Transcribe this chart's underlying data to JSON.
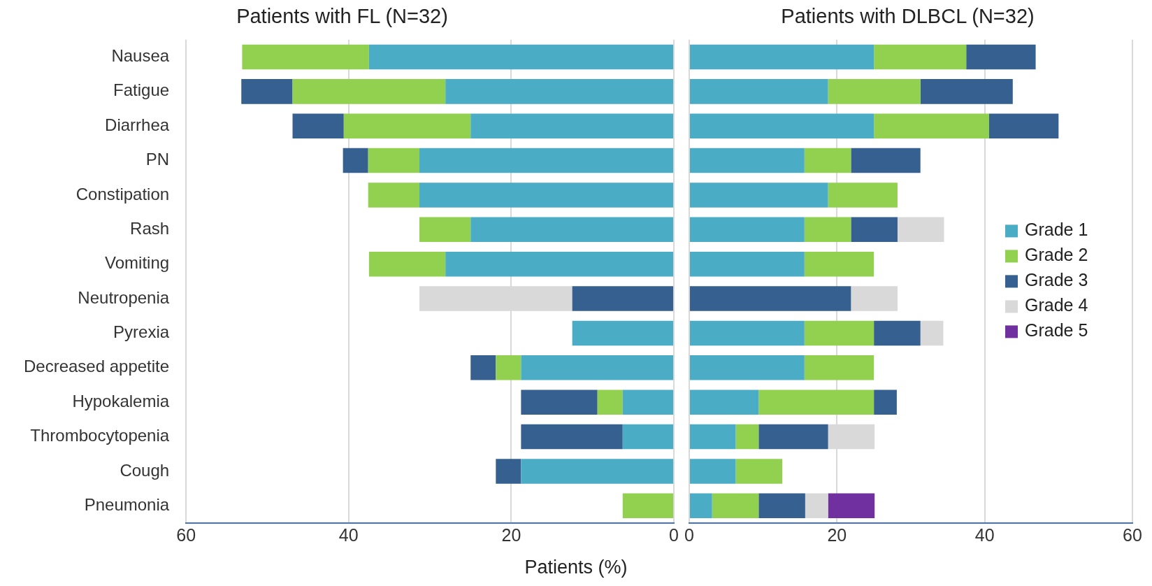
{
  "chart_data": [
    {
      "type": "bar",
      "orientation": "horizontal",
      "stacked": true,
      "title": "Patients with FL (N=32)",
      "xlabel": "Patients (%)",
      "categories": [
        "Nausea",
        "Fatigue",
        "Diarrhea",
        "PN",
        "Constipation",
        "Rash",
        "Vomiting",
        "Neutropenia",
        "Pyrexia",
        "Decreased appetite",
        "Hypokalemia",
        "Thrombocytopenia",
        "Cough",
        "Pneumonia"
      ],
      "series": [
        {
          "color": "#4bacc6",
          "values": [
            37.5,
            28.1,
            25,
            31.3,
            31.3,
            25,
            28.1,
            null,
            12.5,
            18.8,
            6.3,
            6.3,
            18.8,
            null
          ]
        },
        {
          "color": "#92d050",
          "values": [
            15.6,
            18.8,
            15.6,
            6.3,
            6.3,
            6.3,
            9.4,
            null,
            null,
            3.1,
            3.1,
            null,
            null,
            6.3
          ]
        },
        {
          "color": "#35608f",
          "values": [
            null,
            6.3,
            6.3,
            3.1,
            null,
            null,
            null,
            12.5,
            null,
            3.1,
            9.4,
            12.5,
            3.1,
            null
          ]
        },
        {
          "color": "#d9d9d9",
          "values": [
            null,
            null,
            null,
            null,
            null,
            null,
            null,
            18.8,
            null,
            null,
            null,
            null,
            null,
            null
          ]
        }
      ],
      "xlim": [
        60,
        0
      ],
      "xticks": [
        60,
        40,
        20,
        0
      ],
      "grid": "x"
    },
    {
      "type": "bar",
      "orientation": "horizontal",
      "stacked": true,
      "title": "Patients with DLBCL (N=32)",
      "categories": [
        null,
        null,
        null,
        null,
        null,
        null,
        null,
        null,
        null,
        null,
        null,
        null,
        null,
        null
      ],
      "series": [
        {
          "name": "Grade 1",
          "color": "#4bacc6",
          "values": [
            25,
            18.8,
            25,
            15.6,
            18.8,
            15.6,
            15.6,
            null,
            15.6,
            15.6,
            9.4,
            6.3,
            6.3,
            3.1
          ]
        },
        {
          "name": "Grade 2",
          "color": "#92d050",
          "values": [
            12.5,
            12.5,
            15.6,
            6.3,
            9.4,
            6.3,
            9.4,
            null,
            9.4,
            9.4,
            15.6,
            3.1,
            6.3,
            6.3
          ]
        },
        {
          "name": "Grade 3",
          "color": "#35608f",
          "values": [
            9.4,
            12.5,
            9.4,
            9.4,
            null,
            6.3,
            null,
            21.9,
            6.3,
            null,
            3.1,
            9.4,
            null,
            6.3
          ]
        },
        {
          "name": "Grade 4",
          "color": "#d9d9d9",
          "values": [
            null,
            null,
            null,
            null,
            null,
            6.3,
            null,
            6.3,
            3.1,
            null,
            null,
            6.3,
            null,
            3.1
          ]
        },
        {
          "name": "Grade 5",
          "color": "#7030a0",
          "values": [
            null,
            null,
            null,
            null,
            null,
            null,
            null,
            null,
            null,
            null,
            null,
            null,
            null,
            6.3
          ]
        }
      ],
      "xlim": [
        0,
        60
      ],
      "xticks": [
        0,
        20,
        40,
        60
      ],
      "grid": "x",
      "legend": "right",
      "tick_labels": "x"
    }
  ]
}
